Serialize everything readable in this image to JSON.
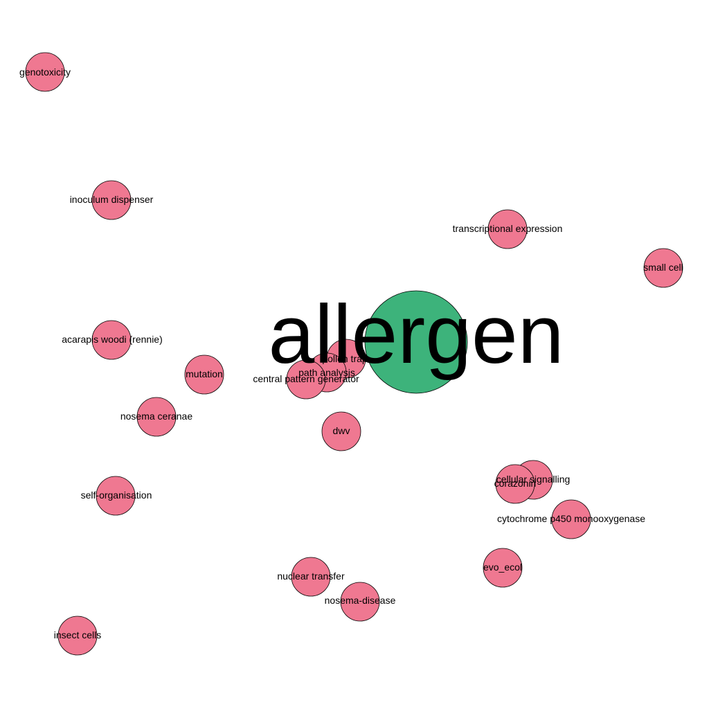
{
  "colors": {
    "background": "#ffffff",
    "center_node": "#3db37b",
    "peripheral_node": "#ef7891",
    "node_outline": "#000000",
    "label": "#000000"
  },
  "center_node": {
    "label": "allergen"
  },
  "nodes": [
    {
      "label": "genotoxicity"
    },
    {
      "label": "inoculum dispenser"
    },
    {
      "label": "transcriptional expression"
    },
    {
      "label": "small cell"
    },
    {
      "label": "acarapis woodi (rennie)"
    },
    {
      "label": "mutation"
    },
    {
      "label": "pollen trap"
    },
    {
      "label": "path analysis"
    },
    {
      "label": "central pattern generator"
    },
    {
      "label": "nosema ceranae"
    },
    {
      "label": "dwv"
    },
    {
      "label": "cellular signalling"
    },
    {
      "label": "corazonin"
    },
    {
      "label": "self-organisation"
    },
    {
      "label": "cytochrome p450 monooxygenase"
    },
    {
      "label": "evo_ecol"
    },
    {
      "label": "nuclear transfer"
    },
    {
      "label": "nosema-disease"
    },
    {
      "label": "insect cells"
    }
  ]
}
